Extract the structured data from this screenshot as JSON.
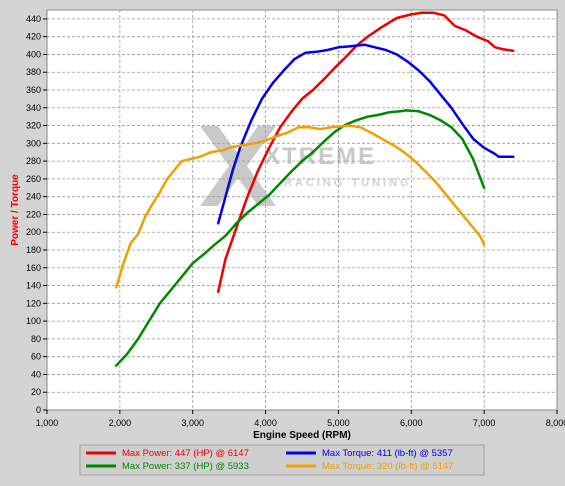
{
  "chart_data": {
    "type": "line",
    "xlabel": "Engine Speed (RPM)",
    "ylabel": "Power / Torque",
    "xlim": [
      1000,
      8000
    ],
    "ylim": [
      0,
      450
    ],
    "x_ticks": [
      "1,000",
      "2,000",
      "3,000",
      "4,000",
      "5,000",
      "6,000",
      "7,000",
      "8,000"
    ],
    "y_ticks": [
      "0",
      "20",
      "40",
      "60",
      "80",
      "100",
      "120",
      "140",
      "160",
      "180",
      "200",
      "220",
      "240",
      "260",
      "280",
      "300",
      "320",
      "340",
      "360",
      "380",
      "400",
      "420",
      "440"
    ],
    "grid": true,
    "legend_position": "bottom",
    "watermark": "XTREME RACING TUNING",
    "series": [
      {
        "name": "Max Power: 447 (HP) @ 6147",
        "color": "#ee0000",
        "points": [
          [
            3350,
            133
          ],
          [
            3450,
            170
          ],
          [
            3600,
            205
          ],
          [
            3750,
            240
          ],
          [
            3900,
            270
          ],
          [
            4050,
            295
          ],
          [
            4200,
            318
          ],
          [
            4350,
            335
          ],
          [
            4500,
            350
          ],
          [
            4650,
            360
          ],
          [
            4800,
            372
          ],
          [
            4950,
            385
          ],
          [
            5100,
            397
          ],
          [
            5250,
            410
          ],
          [
            5400,
            420
          ],
          [
            5600,
            431
          ],
          [
            5800,
            441
          ],
          [
            6000,
            445
          ],
          [
            6147,
            447
          ],
          [
            6300,
            447
          ],
          [
            6450,
            444
          ],
          [
            6600,
            432
          ],
          [
            6750,
            427
          ],
          [
            6900,
            420
          ],
          [
            7050,
            415
          ],
          [
            7150,
            408
          ],
          [
            7250,
            406
          ],
          [
            7400,
            404
          ]
        ]
      },
      {
        "name": "Max Torque: 411 (lb-ft) @ 5357",
        "color": "#0000ee",
        "points": [
          [
            3350,
            210
          ],
          [
            3450,
            240
          ],
          [
            3550,
            270
          ],
          [
            3650,
            295
          ],
          [
            3800,
            325
          ],
          [
            3950,
            350
          ],
          [
            4100,
            368
          ],
          [
            4250,
            382
          ],
          [
            4400,
            395
          ],
          [
            4550,
            402
          ],
          [
            4700,
            403
          ],
          [
            4850,
            405
          ],
          [
            5000,
            408
          ],
          [
            5150,
            409
          ],
          [
            5357,
            411
          ],
          [
            5500,
            408
          ],
          [
            5650,
            405
          ],
          [
            5800,
            400
          ],
          [
            5950,
            392
          ],
          [
            6100,
            382
          ],
          [
            6250,
            370
          ],
          [
            6400,
            355
          ],
          [
            6550,
            340
          ],
          [
            6700,
            322
          ],
          [
            6850,
            305
          ],
          [
            7000,
            295
          ],
          [
            7150,
            288
          ],
          [
            7200,
            285
          ],
          [
            7400,
            285
          ]
        ]
      },
      {
        "name": "Max Power: 337 (HP) @ 5933",
        "color": "#008800",
        "points": [
          [
            1950,
            50
          ],
          [
            2100,
            63
          ],
          [
            2250,
            80
          ],
          [
            2400,
            100
          ],
          [
            2550,
            120
          ],
          [
            2700,
            135
          ],
          [
            2850,
            150
          ],
          [
            3000,
            165
          ],
          [
            3150,
            175
          ],
          [
            3300,
            186
          ],
          [
            3450,
            196
          ],
          [
            3600,
            210
          ],
          [
            3750,
            222
          ],
          [
            3900,
            232
          ],
          [
            4050,
            242
          ],
          [
            4200,
            255
          ],
          [
            4350,
            268
          ],
          [
            4500,
            280
          ],
          [
            4650,
            290
          ],
          [
            4800,
            302
          ],
          [
            4950,
            313
          ],
          [
            5100,
            321
          ],
          [
            5250,
            326
          ],
          [
            5400,
            330
          ],
          [
            5550,
            332
          ],
          [
            5700,
            335
          ],
          [
            5850,
            336
          ],
          [
            5933,
            337
          ],
          [
            6100,
            336
          ],
          [
            6250,
            332
          ],
          [
            6400,
            326
          ],
          [
            6550,
            318
          ],
          [
            6700,
            305
          ],
          [
            6850,
            282
          ],
          [
            7000,
            250
          ]
        ]
      },
      {
        "name": "Max Torque: 320 (lb-ft) @ 5147",
        "color": "#f0a000",
        "points": [
          [
            1950,
            138
          ],
          [
            2050,
            165
          ],
          [
            2150,
            188
          ],
          [
            2250,
            198
          ],
          [
            2350,
            218
          ],
          [
            2450,
            232
          ],
          [
            2550,
            245
          ],
          [
            2650,
            260
          ],
          [
            2750,
            270
          ],
          [
            2850,
            280
          ],
          [
            2950,
            282
          ],
          [
            3100,
            285
          ],
          [
            3250,
            290
          ],
          [
            3400,
            292
          ],
          [
            3550,
            296
          ],
          [
            3700,
            298
          ],
          [
            3850,
            300
          ],
          [
            4000,
            303
          ],
          [
            4150,
            308
          ],
          [
            4300,
            312
          ],
          [
            4450,
            318
          ],
          [
            4600,
            318
          ],
          [
            4750,
            316
          ],
          [
            4900,
            318
          ],
          [
            5147,
            320
          ],
          [
            5300,
            318
          ],
          [
            5450,
            312
          ],
          [
            5600,
            305
          ],
          [
            5750,
            298
          ],
          [
            5900,
            290
          ],
          [
            6050,
            280
          ],
          [
            6200,
            268
          ],
          [
            6350,
            255
          ],
          [
            6500,
            240
          ],
          [
            6650,
            225
          ],
          [
            6800,
            210
          ],
          [
            6950,
            195
          ],
          [
            7000,
            186
          ]
        ]
      }
    ]
  }
}
